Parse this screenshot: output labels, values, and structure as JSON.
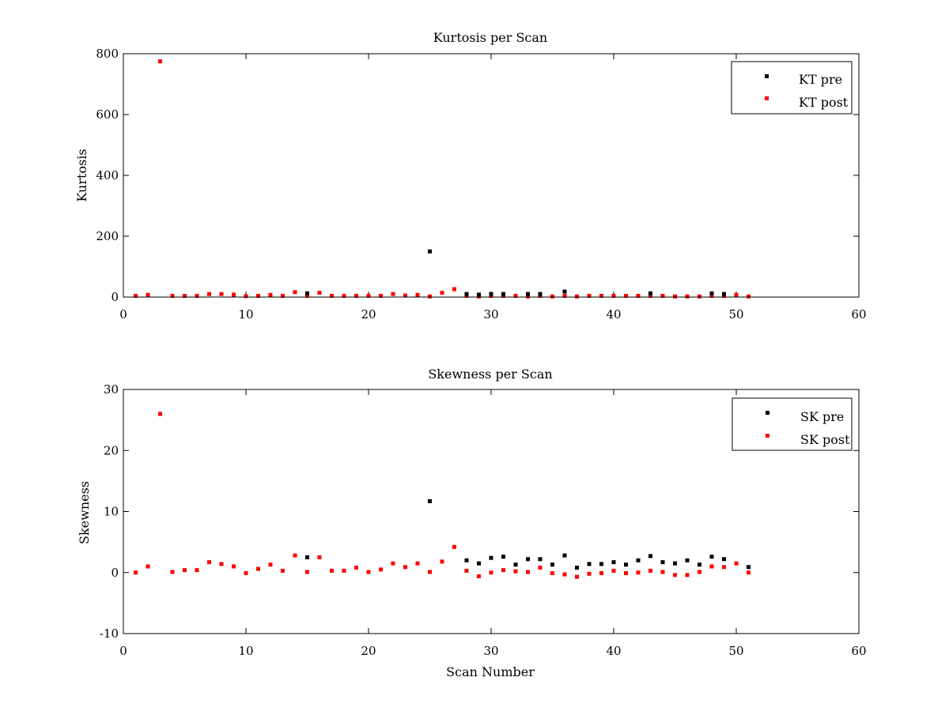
{
  "colors": {
    "pre": "#000000",
    "post": "#ff0000",
    "axes": "#000000",
    "background": "#ffffff"
  },
  "chart_data": [
    {
      "type": "scatter",
      "title": "Kurtosis per Scan",
      "xlabel": "",
      "ylabel": "Kurtosis",
      "xlim": [
        0,
        60
      ],
      "ylim": [
        0,
        800
      ],
      "xticks": [
        "0",
        "10",
        "20",
        "30",
        "40",
        "50",
        "60"
      ],
      "yticks": [
        "0",
        "200",
        "400",
        "600",
        "800"
      ],
      "grid": false,
      "legend": "top-right",
      "series": [
        {
          "name": "KT pre",
          "color": "#000000",
          "x": [
            15,
            25,
            28,
            29,
            30,
            31,
            33,
            34,
            36,
            43,
            48,
            49
          ],
          "y": [
            12,
            150,
            10,
            8,
            10,
            10,
            10,
            10,
            18,
            12,
            12,
            10
          ]
        },
        {
          "name": "KT post",
          "color": "#ff0000",
          "x": [
            1,
            2,
            3,
            4,
            5,
            6,
            7,
            8,
            9,
            10,
            11,
            12,
            13,
            14,
            15,
            16,
            17,
            18,
            19,
            20,
            21,
            22,
            23,
            24,
            25,
            26,
            27,
            28,
            29,
            30,
            31,
            32,
            33,
            34,
            35,
            36,
            37,
            38,
            39,
            40,
            41,
            42,
            43,
            44,
            45,
            46,
            47,
            48,
            49,
            50,
            51
          ],
          "y": [
            4,
            7,
            775,
            4,
            4,
            4,
            10,
            10,
            8,
            3,
            4,
            7,
            4,
            16,
            4,
            14,
            4,
            4,
            4,
            4,
            4,
            10,
            5,
            7,
            2,
            14,
            26,
            4,
            2,
            4,
            4,
            4,
            2,
            4,
            2,
            4,
            2,
            4,
            4,
            4,
            4,
            4,
            4,
            4,
            2,
            2,
            2,
            4,
            4,
            7,
            2
          ]
        }
      ]
    },
    {
      "type": "scatter",
      "title": "Skewness per Scan",
      "xlabel": "Scan Number",
      "ylabel": "Skewness",
      "xlim": [
        0,
        60
      ],
      "ylim": [
        -10,
        30
      ],
      "xticks": [
        "0",
        "10",
        "20",
        "30",
        "40",
        "50",
        "60"
      ],
      "yticks": [
        "-10",
        "0",
        "10",
        "20",
        "30"
      ],
      "grid": false,
      "legend": "top-right",
      "series": [
        {
          "name": "SK pre",
          "color": "#000000",
          "x": [
            15,
            25,
            28,
            29,
            30,
            31,
            32,
            33,
            34,
            35,
            36,
            37,
            38,
            39,
            40,
            41,
            42,
            43,
            44,
            45,
            46,
            47,
            48,
            49,
            51
          ],
          "y": [
            2.5,
            11.7,
            2.0,
            1.5,
            2.4,
            2.6,
            1.3,
            2.2,
            2.2,
            1.3,
            2.8,
            0.8,
            1.4,
            1.4,
            1.7,
            1.3,
            2.0,
            2.7,
            1.7,
            1.5,
            2.0,
            1.3,
            2.6,
            2.2,
            0.9
          ]
        },
        {
          "name": "SK post",
          "color": "#ff0000",
          "x": [
            1,
            2,
            3,
            4,
            5,
            6,
            7,
            8,
            9,
            10,
            11,
            12,
            13,
            14,
            15,
            16,
            17,
            18,
            19,
            20,
            21,
            22,
            23,
            24,
            25,
            26,
            27,
            28,
            29,
            30,
            31,
            32,
            33,
            34,
            35,
            36,
            37,
            38,
            39,
            40,
            41,
            42,
            43,
            44,
            45,
            46,
            47,
            48,
            49,
            50,
            51
          ],
          "y": [
            0,
            1.0,
            26.0,
            0.1,
            0.4,
            0.4,
            1.7,
            1.4,
            1.0,
            -0.1,
            0.6,
            1.3,
            0.3,
            2.8,
            0.1,
            2.5,
            0.3,
            0.3,
            0.8,
            0.1,
            0.5,
            1.5,
            0.9,
            1.5,
            0.1,
            1.8,
            4.2,
            0.3,
            -0.6,
            0.0,
            0.4,
            0.2,
            0.1,
            0.8,
            -0.1,
            -0.3,
            -0.7,
            -0.2,
            -0.1,
            0.3,
            -0.1,
            0.0,
            0.3,
            0.1,
            -0.4,
            -0.4,
            0.1,
            1.0,
            0.9,
            1.5,
            0.0
          ]
        }
      ]
    }
  ]
}
